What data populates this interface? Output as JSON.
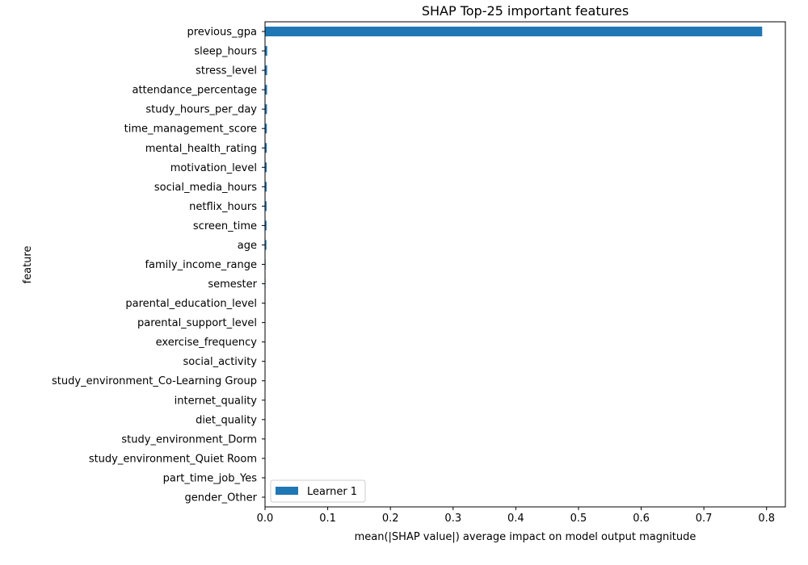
{
  "chart_data": {
    "type": "bar",
    "orientation": "horizontal",
    "title": "SHAP Top-25 important features",
    "xlabel": "mean(|SHAP value|) average impact on model output magnitude",
    "ylabel": "feature",
    "xlim": [
      0,
      0.83
    ],
    "xticks": [
      0.0,
      0.1,
      0.2,
      0.3,
      0.4,
      0.5,
      0.6,
      0.7,
      0.8
    ],
    "xtick_labels": [
      "0.0",
      "0.1",
      "0.2",
      "0.3",
      "0.4",
      "0.5",
      "0.6",
      "0.7",
      "0.8"
    ],
    "grid": false,
    "legend_position": "lower-left",
    "color": "#1f77b4",
    "categories": [
      "previous_gpa",
      "sleep_hours",
      "stress_level",
      "attendance_percentage",
      "study_hours_per_day",
      "time_management_score",
      "mental_health_rating",
      "motivation_level",
      "social_media_hours",
      "netflix_hours",
      "screen_time",
      "age",
      "family_income_range",
      "semester",
      "parental_education_level",
      "parental_support_level",
      "exercise_frequency",
      "social_activity",
      "study_environment_Co-Learning Group",
      "internet_quality",
      "diet_quality",
      "study_environment_Dorm",
      "study_environment_Quiet Room",
      "part_time_job_Yes",
      "gender_Other"
    ],
    "series": [
      {
        "name": "Learner 1",
        "values": [
          0.793,
          0.0035,
          0.0033,
          0.0032,
          0.0031,
          0.0029,
          0.0028,
          0.0027,
          0.0026,
          0.0025,
          0.0024,
          0.0022,
          0.0009,
          0.0008,
          0.0007,
          0.0006,
          0.0005,
          0.0005,
          0.0004,
          0.0004,
          0.0003,
          0.0003,
          0.0002,
          0.0002,
          0.0001
        ]
      }
    ]
  }
}
